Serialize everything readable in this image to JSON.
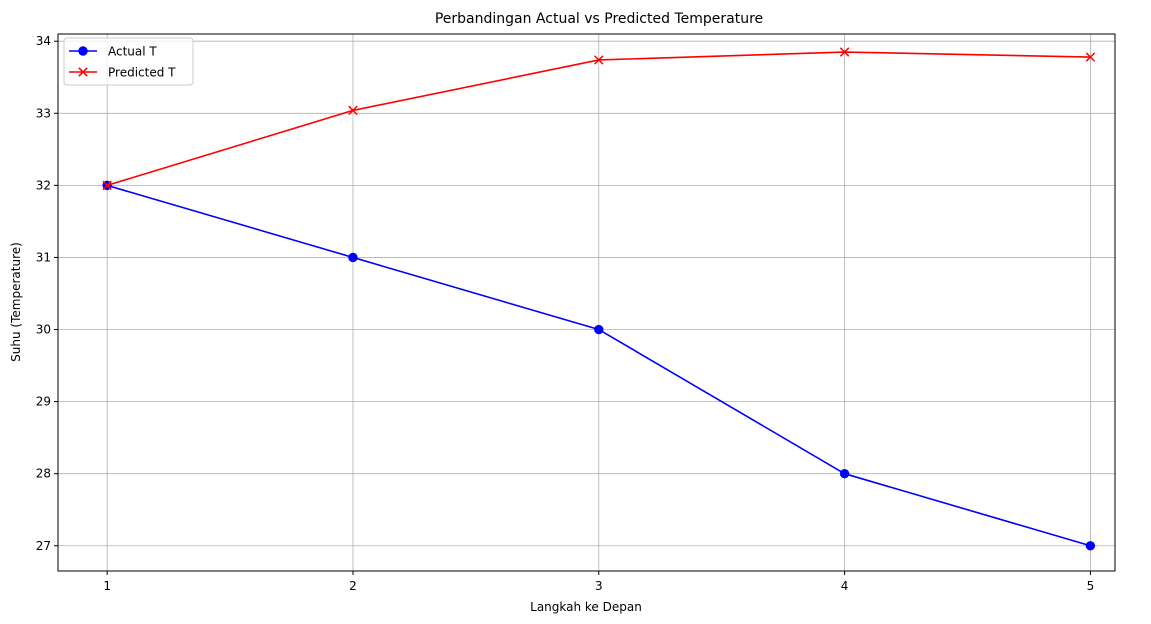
{
  "chart_data": {
    "type": "line",
    "title": "Perbandingan Actual vs Predicted Temperature",
    "xlabel": "Langkah ke Depan",
    "ylabel": "Suhu (Temperature)",
    "x": [
      1,
      2,
      3,
      4,
      5
    ],
    "xticks": [
      "1",
      "2",
      "3",
      "4",
      "5"
    ],
    "yticks": [
      "27",
      "28",
      "29",
      "30",
      "31",
      "32",
      "33",
      "34"
    ],
    "xlim": [
      0.8,
      5.1
    ],
    "ylim": [
      26.65,
      34.1
    ],
    "grid": true,
    "legend_position": "top-left",
    "series": [
      {
        "name": "Actual T",
        "values": [
          32,
          31,
          30,
          28,
          27
        ],
        "color": "#0000ff",
        "marker": "circle"
      },
      {
        "name": "Predicted T",
        "values": [
          32.0,
          33.04,
          33.74,
          33.85,
          33.78
        ],
        "color": "#ff0000",
        "marker": "x"
      }
    ]
  }
}
